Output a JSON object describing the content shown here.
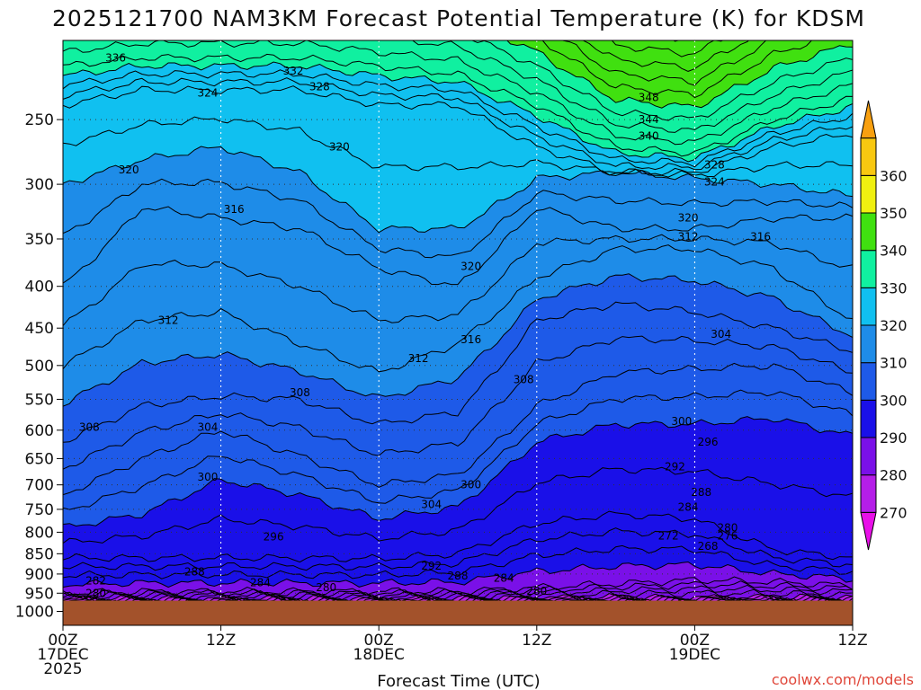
{
  "chart_data": {
    "type": "contour",
    "title": "2025121700 NAM3KM Forecast Potential Temperature (K) for KDSM",
    "xlabel": "Forecast Time (UTC)",
    "ylabel": "",
    "x_ticks": [
      {
        "hours": 0,
        "line1": "00Z",
        "line2": "17DEC",
        "line3": "2025"
      },
      {
        "hours": 12,
        "line1": "12Z",
        "line2": "",
        "line3": ""
      },
      {
        "hours": 24,
        "line1": "00Z",
        "line2": "18DEC",
        "line3": ""
      },
      {
        "hours": 36,
        "line1": "12Z",
        "line2": "",
        "line3": ""
      },
      {
        "hours": 48,
        "line1": "00Z",
        "line2": "19DEC",
        "line3": ""
      },
      {
        "hours": 60,
        "line1": "12Z",
        "line2": "",
        "line3": ""
      }
    ],
    "xlim": [
      0,
      60
    ],
    "y_ticks": [
      "250",
      "300",
      "350",
      "400",
      "450",
      "500",
      "550",
      "600",
      "650",
      "700",
      "750",
      "800",
      "850",
      "900",
      "950",
      "1000"
    ],
    "ylim_hPa": [
      1040,
      200
    ],
    "ground_top_hPa": 970,
    "colorbar": {
      "levels": [
        270,
        280,
        290,
        300,
        310,
        320,
        330,
        340,
        350,
        360
      ],
      "colors": [
        "#e810e8",
        "#b51ee8",
        "#7a10e8",
        "#1a10e8",
        "#1e5ae8",
        "#1e8ce8",
        "#10c0f0",
        "#10f0a0",
        "#40e010",
        "#f0f010",
        "#f8c810",
        "#f8a010"
      ]
    },
    "contour_interval_K": 2,
    "hours": [
      0,
      6,
      12,
      18,
      24,
      30,
      36,
      42,
      48,
      54,
      60
    ],
    "isentropes_hPa": {
      "280": [
        965,
        965,
        965,
        965,
        965,
        965,
        962,
        962,
        962,
        962,
        962
      ],
      "288": [
        950,
        945,
        945,
        945,
        945,
        945,
        935,
        925,
        915,
        920,
        930
      ],
      "296": [
        860,
        860,
        860,
        860,
        862,
        850,
        780,
        760,
        770,
        840,
        860
      ],
      "300": [
        790,
        760,
        690,
        720,
        770,
        745,
        620,
        590,
        590,
        580,
        610
      ],
      "304": [
        720,
        650,
        600,
        645,
        700,
        680,
        560,
        510,
        505,
        500,
        540
      ],
      "308": [
        620,
        560,
        545,
        550,
        590,
        570,
        440,
        420,
        430,
        450,
        480
      ],
      "312": [
        500,
        440,
        430,
        470,
        510,
        470,
        390,
        360,
        360,
        380,
        440
      ],
      "316": [
        400,
        320,
        330,
        340,
        380,
        400,
        320,
        340,
        340,
        330,
        330
      ],
      "320": [
        300,
        280,
        270,
        290,
        340,
        340,
        295,
        290,
        295,
        300,
        310
      ],
      "324": [
        240,
        230,
        230,
        230,
        240,
        240,
        270,
        290,
        290,
        270,
        260
      ],
      "332": [
        215,
        210,
        210,
        210,
        215,
        220,
        240,
        270,
        275,
        250,
        235
      ]
    },
    "contour_labels": [
      {
        "value": "336",
        "hours": 4,
        "hPa": 210
      },
      {
        "value": "332",
        "hours": 17.5,
        "hPa": 218
      },
      {
        "value": "328",
        "hours": 19.5,
        "hPa": 228
      },
      {
        "value": "324",
        "hours": 11,
        "hPa": 232
      },
      {
        "value": "348",
        "hours": 44.5,
        "hPa": 235
      },
      {
        "value": "344",
        "hours": 44.5,
        "hPa": 250
      },
      {
        "value": "340",
        "hours": 44.5,
        "hPa": 262
      },
      {
        "value": "328",
        "hours": 49.5,
        "hPa": 284
      },
      {
        "value": "324",
        "hours": 49.5,
        "hPa": 298
      },
      {
        "value": "320",
        "hours": 5,
        "hPa": 288
      },
      {
        "value": "320",
        "hours": 21,
        "hPa": 270
      },
      {
        "value": "320",
        "hours": 47.5,
        "hPa": 330
      },
      {
        "value": "316",
        "hours": 13,
        "hPa": 322
      },
      {
        "value": "312",
        "hours": 47.5,
        "hPa": 348
      },
      {
        "value": "316",
        "hours": 53,
        "hPa": 348
      },
      {
        "value": "320",
        "hours": 31,
        "hPa": 378
      },
      {
        "value": "312",
        "hours": 8,
        "hPa": 440
      },
      {
        "value": "316",
        "hours": 31,
        "hPa": 465
      },
      {
        "value": "304",
        "hours": 50,
        "hPa": 458
      },
      {
        "value": "312",
        "hours": 27,
        "hPa": 490
      },
      {
        "value": "308",
        "hours": 35,
        "hPa": 520
      },
      {
        "value": "308",
        "hours": 18,
        "hPa": 540
      },
      {
        "value": "300",
        "hours": 47,
        "hPa": 585
      },
      {
        "value": "308",
        "hours": 2,
        "hPa": 595
      },
      {
        "value": "304",
        "hours": 11,
        "hPa": 595
      },
      {
        "value": "296",
        "hours": 49,
        "hPa": 620
      },
      {
        "value": "292",
        "hours": 46.5,
        "hPa": 665
      },
      {
        "value": "300",
        "hours": 11,
        "hPa": 685
      },
      {
        "value": "300",
        "hours": 31,
        "hPa": 700
      },
      {
        "value": "288",
        "hours": 48.5,
        "hPa": 715
      },
      {
        "value": "304",
        "hours": 28,
        "hPa": 740
      },
      {
        "value": "284",
        "hours": 47.5,
        "hPa": 745
      },
      {
        "value": "296",
        "hours": 16,
        "hPa": 810
      },
      {
        "value": "280",
        "hours": 50.5,
        "hPa": 790
      },
      {
        "value": "276",
        "hours": 50.5,
        "hPa": 808
      },
      {
        "value": "272",
        "hours": 46,
        "hPa": 808
      },
      {
        "value": "268",
        "hours": 49,
        "hPa": 832
      },
      {
        "value": "292",
        "hours": 28,
        "hPa": 880
      },
      {
        "value": "288",
        "hours": 10,
        "hPa": 895
      },
      {
        "value": "288",
        "hours": 30,
        "hPa": 905
      },
      {
        "value": "284",
        "hours": 33.5,
        "hPa": 910
      },
      {
        "value": "282",
        "hours": 2.5,
        "hPa": 917
      },
      {
        "value": "284",
        "hours": 15,
        "hPa": 922
      },
      {
        "value": "280",
        "hours": 20,
        "hPa": 935
      },
      {
        "value": "280",
        "hours": 2.5,
        "hPa": 950
      },
      {
        "value": "280",
        "hours": 36,
        "hPa": 945
      }
    ]
  },
  "credit": "coolwx.com/models"
}
